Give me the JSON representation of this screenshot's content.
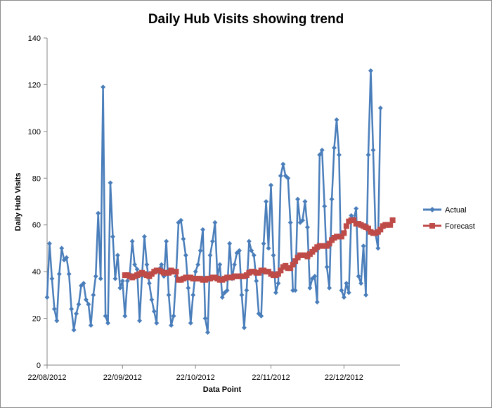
{
  "chart_data": {
    "type": "line",
    "title": "Daily Hub Visits showing trend",
    "xlabel": "Data Point",
    "ylabel": "Daily Hub Visits",
    "ylim": [
      0,
      140
    ],
    "y_ticks": [
      0,
      20,
      40,
      60,
      80,
      100,
      120,
      140
    ],
    "x_tick_labels": [
      "22/08/2012",
      "22/09/2012",
      "22/10/2012",
      "22/11/2012",
      "22/12/2012"
    ],
    "x_tick_dates": [
      "2012-08-22",
      "2012-09-22",
      "2012-10-22",
      "2012-11-22",
      "2012-12-22"
    ],
    "x_range": [
      "2012-08-22",
      "2013-01-14"
    ],
    "grid": false,
    "legend_position": "right",
    "series": [
      {
        "name": "Actual",
        "color": "#4a7ebb",
        "marker": "diamond",
        "start_date": "2012-08-22",
        "values": [
          29,
          52,
          37,
          24,
          19,
          39,
          50,
          45,
          46,
          39,
          24,
          15,
          22,
          26,
          34,
          35,
          28,
          26,
          17,
          30,
          38,
          65,
          37,
          119,
          21,
          18,
          78,
          55,
          37,
          47,
          33,
          36,
          21,
          36,
          39,
          53,
          43,
          41,
          19,
          38,
          55,
          43,
          35,
          28,
          23,
          18,
          41,
          43,
          38,
          53,
          30,
          17,
          21,
          38,
          61,
          62,
          54,
          47,
          33,
          18,
          30,
          40,
          43,
          49,
          58,
          20,
          14,
          47,
          53,
          61,
          38,
          43,
          29,
          31,
          32,
          52,
          37,
          43,
          48,
          49,
          30,
          16,
          32,
          53,
          49,
          47,
          36,
          22,
          21,
          52,
          70,
          50,
          77,
          47,
          31,
          35,
          81,
          86,
          81,
          80,
          61,
          32,
          32,
          71,
          61,
          62,
          70,
          59,
          33,
          37,
          38,
          27,
          90,
          92,
          68,
          42,
          33,
          71,
          93,
          105,
          90,
          32,
          29,
          35,
          31,
          64,
          62,
          67,
          38,
          35,
          51,
          30,
          90,
          126,
          92,
          56,
          50,
          110
        ]
      },
      {
        "name": "Forecast",
        "color": "#be4b48",
        "marker": "square",
        "start_date": "2012-09-23",
        "values": [
          38.5,
          38.5,
          38,
          37.5,
          38,
          38.5,
          39,
          39.5,
          39,
          38.5,
          38,
          39,
          40,
          40.5,
          40.5,
          40,
          39.5,
          39.5,
          39.5,
          40.5,
          40,
          40,
          36.5,
          36.5,
          37,
          37.5,
          37.5,
          37.5,
          37,
          37,
          37,
          37,
          36.5,
          36.5,
          37,
          37,
          37.5,
          37.5,
          37,
          36.5,
          36.5,
          37,
          37.5,
          37.5,
          37.5,
          38,
          38,
          38,
          38,
          38,
          38.5,
          39.5,
          40,
          40,
          39.5,
          39.5,
          40.5,
          40.5,
          40,
          40,
          39,
          38.5,
          38.5,
          39,
          40.5,
          42,
          42.5,
          41.5,
          41.5,
          43,
          44.5,
          46,
          47,
          47,
          47,
          46.5,
          47.5,
          48.5,
          49.5,
          50.5,
          51,
          51,
          51,
          51,
          52,
          53.5,
          54.5,
          55,
          55,
          55,
          56.5,
          59.5,
          61.5,
          62,
          62,
          60.5,
          60.5,
          60,
          59.5,
          59,
          58.5,
          57,
          56.5,
          56.5,
          57,
          58,
          59.5,
          60,
          60,
          60,
          62
        ]
      }
    ]
  }
}
